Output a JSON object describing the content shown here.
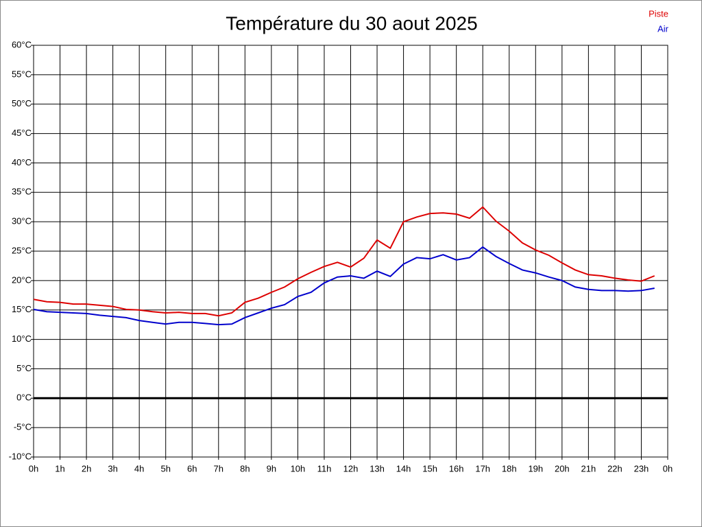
{
  "chart_data": {
    "type": "line",
    "title": "Température du 30 aout 2025",
    "x": [
      0,
      0.5,
      1,
      1.5,
      2,
      2.5,
      3,
      3.5,
      4,
      4.5,
      5,
      5.5,
      6,
      6.5,
      7,
      7.5,
      8,
      8.5,
      9,
      9.5,
      10,
      10.5,
      11,
      11.5,
      12,
      12.5,
      13,
      13.5,
      14,
      14.5,
      15,
      15.5,
      16,
      16.5,
      17,
      17.5,
      18,
      18.5,
      19,
      19.5,
      20,
      20.5,
      21,
      21.5,
      22,
      22.5,
      23,
      23.5
    ],
    "series": [
      {
        "name": "Piste",
        "color": "#dd0000",
        "values": [
          16.8,
          16.4,
          16.3,
          16.0,
          16.0,
          15.8,
          15.6,
          15.1,
          15.0,
          14.7,
          14.5,
          14.6,
          14.4,
          14.4,
          14.0,
          14.5,
          16.3,
          17.0,
          18.0,
          18.9,
          20.3,
          21.4,
          22.4,
          23.1,
          22.3,
          23.8,
          26.9,
          25.5,
          30.0,
          30.8,
          31.4,
          31.5,
          31.3,
          30.6,
          32.5,
          30.1,
          28.4,
          26.4,
          25.2,
          24.3,
          23.0,
          21.8,
          21.0,
          20.8,
          20.4,
          20.1,
          19.9,
          20.8
        ]
      },
      {
        "name": "Air",
        "color": "#0000cc",
        "values": [
          15.1,
          14.7,
          14.6,
          14.5,
          14.4,
          14.1,
          13.9,
          13.7,
          13.2,
          12.9,
          12.6,
          12.9,
          12.9,
          12.7,
          12.5,
          12.6,
          13.7,
          14.5,
          15.3,
          15.9,
          17.3,
          18.0,
          19.6,
          20.6,
          20.8,
          20.4,
          21.6,
          20.7,
          22.8,
          23.9,
          23.7,
          24.4,
          23.5,
          23.9,
          25.7,
          24.1,
          22.9,
          21.8,
          21.3,
          20.6,
          20.0,
          18.9,
          18.5,
          18.3,
          18.3,
          18.2,
          18.3,
          18.7
        ]
      }
    ],
    "xlim": [
      0,
      24
    ],
    "xticks": [
      {
        "value": 0,
        "label": "0h"
      },
      {
        "value": 1,
        "label": "1h"
      },
      {
        "value": 2,
        "label": "2h"
      },
      {
        "value": 3,
        "label": "3h"
      },
      {
        "value": 4,
        "label": "4h"
      },
      {
        "value": 5,
        "label": "5h"
      },
      {
        "value": 6,
        "label": "6h"
      },
      {
        "value": 7,
        "label": "7h"
      },
      {
        "value": 8,
        "label": "8h"
      },
      {
        "value": 9,
        "label": "9h"
      },
      {
        "value": 10,
        "label": "10h"
      },
      {
        "value": 11,
        "label": "11h"
      },
      {
        "value": 12,
        "label": "12h"
      },
      {
        "value": 13,
        "label": "13h"
      },
      {
        "value": 14,
        "label": "14h"
      },
      {
        "value": 15,
        "label": "15h"
      },
      {
        "value": 16,
        "label": "16h"
      },
      {
        "value": 17,
        "label": "17h"
      },
      {
        "value": 18,
        "label": "18h"
      },
      {
        "value": 19,
        "label": "19h"
      },
      {
        "value": 20,
        "label": "20h"
      },
      {
        "value": 21,
        "label": "21h"
      },
      {
        "value": 22,
        "label": "22h"
      },
      {
        "value": 23,
        "label": "23h"
      },
      {
        "value": 24,
        "label": "0h"
      }
    ],
    "ylim": [
      -10,
      60
    ],
    "yticks": [
      {
        "value": 60,
        "label": "60°C"
      },
      {
        "value": 55,
        "label": "55°C"
      },
      {
        "value": 50,
        "label": "50°C"
      },
      {
        "value": 45,
        "label": "45°C"
      },
      {
        "value": 40,
        "label": "40°C"
      },
      {
        "value": 35,
        "label": "35°C"
      },
      {
        "value": 30,
        "label": "30°C"
      },
      {
        "value": 25,
        "label": "25°C"
      },
      {
        "value": 20,
        "label": "20°C"
      },
      {
        "value": 15,
        "label": "15°C"
      },
      {
        "value": 10,
        "label": "10°C"
      },
      {
        "value": 5,
        "label": "5°C"
      },
      {
        "value": 0,
        "label": "0°C"
      },
      {
        "value": -5,
        "label": "-5°C"
      },
      {
        "value": -10,
        "label": "-10°C"
      }
    ],
    "grid": true,
    "zero_line": true,
    "legend": "top-right"
  }
}
